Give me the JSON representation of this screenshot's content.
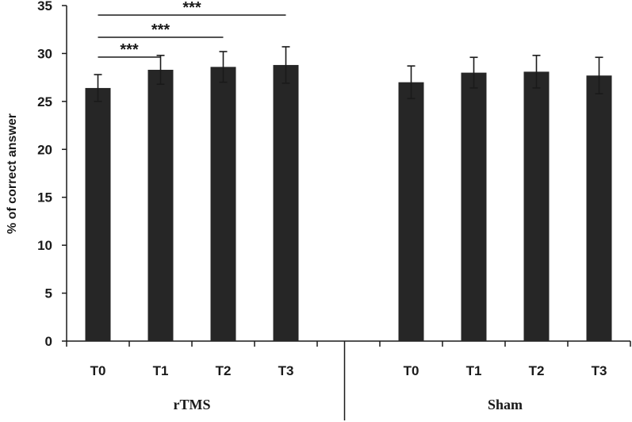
{
  "chart_data": {
    "type": "bar",
    "ylabel": "% of correct answer",
    "ylim": [
      0,
      35
    ],
    "yticks": [
      0,
      5,
      10,
      15,
      20,
      25,
      30,
      35
    ],
    "grid": false,
    "bar_color": "#262626",
    "groups": [
      {
        "name": "rTMS",
        "categories": [
          "T0",
          "T1",
          "T2",
          "T3"
        ],
        "values": [
          26.4,
          28.3,
          28.6,
          28.8
        ],
        "errors": [
          1.4,
          1.5,
          1.6,
          1.9
        ]
      },
      {
        "name": "Sham",
        "categories": [
          "T0",
          "T1",
          "T2",
          "T3"
        ],
        "values": [
          27.0,
          28.0,
          28.1,
          27.7
        ],
        "errors": [
          1.7,
          1.6,
          1.7,
          1.9
        ]
      }
    ],
    "significance": [
      {
        "group": "rTMS",
        "from": "T0",
        "to": "T1",
        "label": "***"
      },
      {
        "group": "rTMS",
        "from": "T0",
        "to": "T2",
        "label": "***"
      },
      {
        "group": "rTMS",
        "from": "T0",
        "to": "T3",
        "label": "***"
      }
    ]
  }
}
